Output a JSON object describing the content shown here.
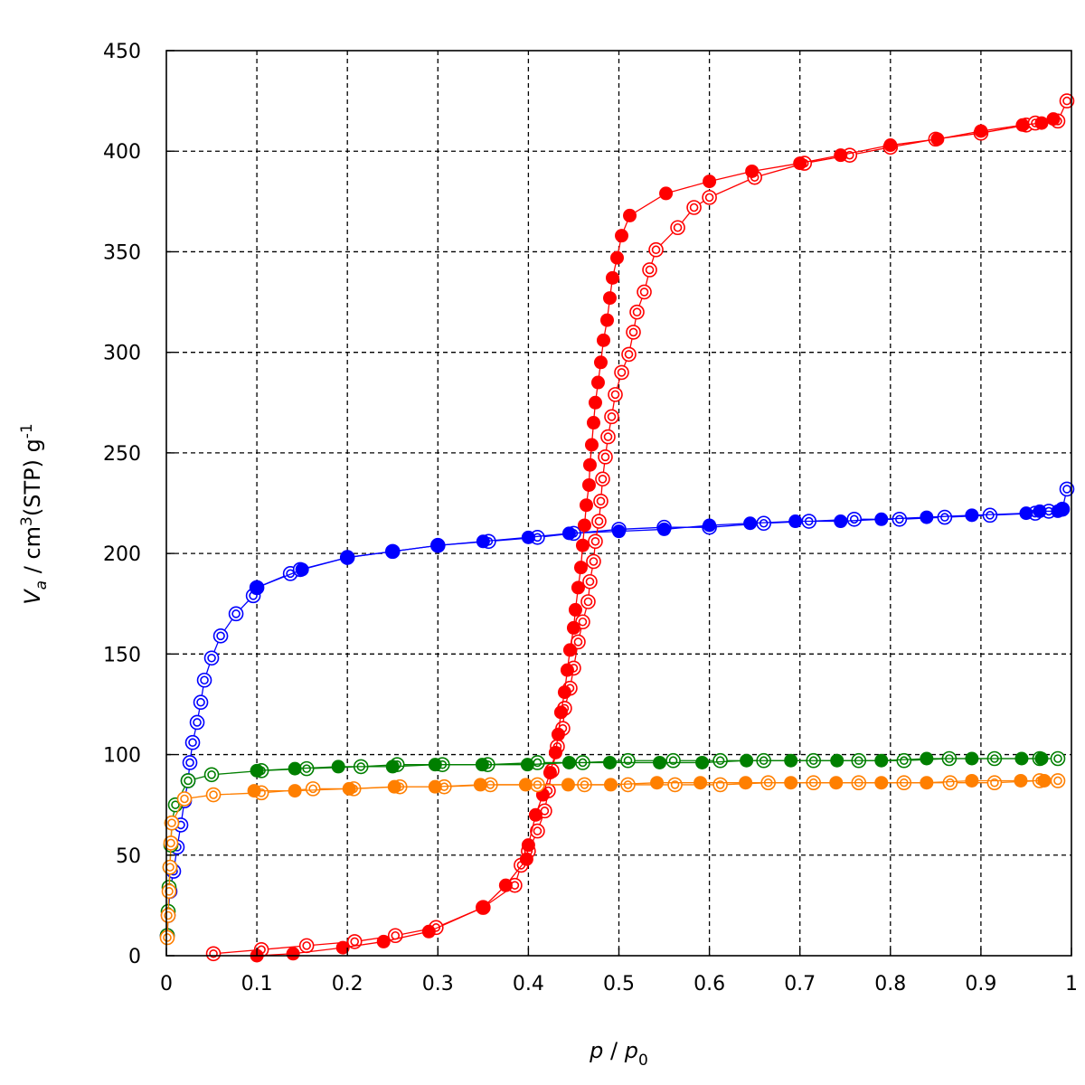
{
  "chart_data": {
    "type": "scatter",
    "title": "",
    "xlabel": {
      "main": "p",
      "sep": " / ",
      "base": "p",
      "sub": "0"
    },
    "ylabel": {
      "v": "V",
      "v_sub": "a",
      "rest": " / cm",
      "sup3": "3",
      "rest2": "(STP) g",
      "supm1": "-1"
    },
    "xlim": [
      0,
      1
    ],
    "ylim": [
      0,
      450
    ],
    "xticks": [
      0,
      0.1,
      0.2,
      0.3,
      0.4,
      0.5,
      0.6,
      0.7,
      0.8,
      0.9,
      1
    ],
    "xtick_labels": [
      "0",
      "0.1",
      "0.2",
      "0.3",
      "0.4",
      "0.5",
      "0.6",
      "0.7",
      "0.8",
      "0.9",
      "1"
    ],
    "yticks": [
      0,
      50,
      100,
      150,
      200,
      250,
      300,
      350,
      400,
      450
    ],
    "ytick_labels": [
      "0",
      "50",
      "100",
      "150",
      "200",
      "250",
      "300",
      "350",
      "400",
      "450"
    ],
    "grid": true,
    "series": [
      {
        "color": "#0000ff",
        "marker": "open",
        "points": [
          [
            0.001,
            10
          ],
          [
            0.002,
            20
          ],
          [
            0.004,
            32
          ],
          [
            0.008,
            42
          ],
          [
            0.012,
            54
          ],
          [
            0.016,
            65
          ],
          [
            0.02,
            77
          ],
          [
            0.024,
            87
          ],
          [
            0.026,
            96
          ],
          [
            0.029,
            106
          ],
          [
            0.034,
            116
          ],
          [
            0.038,
            126
          ],
          [
            0.042,
            137
          ],
          [
            0.05,
            148
          ],
          [
            0.06,
            159
          ],
          [
            0.077,
            170
          ],
          [
            0.096,
            179
          ],
          [
            0.1,
            183
          ],
          [
            0.137,
            190
          ],
          [
            0.148,
            192
          ],
          [
            0.2,
            198
          ],
          [
            0.25,
            201
          ],
          [
            0.3,
            204
          ],
          [
            0.356,
            206
          ],
          [
            0.41,
            208
          ],
          [
            0.45,
            210
          ],
          [
            0.5,
            212
          ],
          [
            0.55,
            213
          ],
          [
            0.6,
            213
          ],
          [
            0.66,
            215
          ],
          [
            0.71,
            216
          ],
          [
            0.76,
            217
          ],
          [
            0.81,
            217
          ],
          [
            0.86,
            218
          ],
          [
            0.91,
            219
          ],
          [
            0.96,
            220
          ],
          [
            0.975,
            221
          ],
          [
            0.99,
            222
          ],
          [
            0.995,
            232
          ]
        ]
      },
      {
        "color": "#0000ff",
        "marker": "filled",
        "points": [
          [
            0.1,
            183
          ],
          [
            0.15,
            192
          ],
          [
            0.2,
            198
          ],
          [
            0.25,
            201
          ],
          [
            0.3,
            204
          ],
          [
            0.35,
            206
          ],
          [
            0.4,
            208
          ],
          [
            0.445,
            210
          ],
          [
            0.5,
            211
          ],
          [
            0.55,
            212
          ],
          [
            0.6,
            214
          ],
          [
            0.645,
            215
          ],
          [
            0.695,
            216
          ],
          [
            0.745,
            216
          ],
          [
            0.79,
            217
          ],
          [
            0.84,
            218
          ],
          [
            0.89,
            219
          ],
          [
            0.95,
            220
          ],
          [
            0.965,
            221
          ],
          [
            0.985,
            221
          ],
          [
            0.99,
            222
          ]
        ]
      },
      {
        "color": "#ff0000",
        "marker": "open",
        "points": [
          [
            0.052,
            1
          ],
          [
            0.105,
            3
          ],
          [
            0.155,
            5
          ],
          [
            0.208,
            7
          ],
          [
            0.253,
            10
          ],
          [
            0.298,
            14
          ],
          [
            0.35,
            24
          ],
          [
            0.385,
            35
          ],
          [
            0.392,
            45
          ],
          [
            0.4,
            52
          ],
          [
            0.41,
            62
          ],
          [
            0.418,
            72
          ],
          [
            0.422,
            82
          ],
          [
            0.426,
            92
          ],
          [
            0.432,
            104
          ],
          [
            0.438,
            113
          ],
          [
            0.44,
            123
          ],
          [
            0.446,
            133
          ],
          [
            0.45,
            143
          ],
          [
            0.455,
            156
          ],
          [
            0.46,
            166
          ],
          [
            0.466,
            176
          ],
          [
            0.468,
            186
          ],
          [
            0.472,
            196
          ],
          [
            0.474,
            206
          ],
          [
            0.478,
            216
          ],
          [
            0.48,
            226
          ],
          [
            0.482,
            237
          ],
          [
            0.485,
            248
          ],
          [
            0.488,
            258
          ],
          [
            0.492,
            268
          ],
          [
            0.496,
            279
          ],
          [
            0.503,
            290
          ],
          [
            0.511,
            299
          ],
          [
            0.516,
            310
          ],
          [
            0.52,
            320
          ],
          [
            0.528,
            330
          ],
          [
            0.534,
            341
          ],
          [
            0.541,
            351
          ],
          [
            0.565,
            362
          ],
          [
            0.583,
            372
          ],
          [
            0.6,
            377
          ],
          [
            0.65,
            387
          ],
          [
            0.705,
            394
          ],
          [
            0.755,
            398
          ],
          [
            0.8,
            402
          ],
          [
            0.85,
            406
          ],
          [
            0.9,
            409
          ],
          [
            0.95,
            413
          ],
          [
            0.96,
            414
          ],
          [
            0.985,
            415
          ],
          [
            0.995,
            425
          ]
        ]
      },
      {
        "color": "#ff0000",
        "marker": "filled",
        "points": [
          [
            0.1,
            0
          ],
          [
            0.14,
            1
          ],
          [
            0.195,
            4
          ],
          [
            0.24,
            7
          ],
          [
            0.29,
            12
          ],
          [
            0.35,
            24
          ],
          [
            0.375,
            35
          ],
          [
            0.398,
            48
          ],
          [
            0.4,
            55
          ],
          [
            0.408,
            70
          ],
          [
            0.416,
            80
          ],
          [
            0.424,
            91
          ],
          [
            0.43,
            101
          ],
          [
            0.433,
            110
          ],
          [
            0.436,
            121
          ],
          [
            0.44,
            131
          ],
          [
            0.443,
            142
          ],
          [
            0.446,
            152
          ],
          [
            0.45,
            163
          ],
          [
            0.452,
            172
          ],
          [
            0.455,
            183
          ],
          [
            0.458,
            193
          ],
          [
            0.46,
            204
          ],
          [
            0.462,
            214
          ],
          [
            0.464,
            224
          ],
          [
            0.467,
            234
          ],
          [
            0.468,
            244
          ],
          [
            0.47,
            254
          ],
          [
            0.472,
            265
          ],
          [
            0.474,
            275
          ],
          [
            0.477,
            285
          ],
          [
            0.48,
            295
          ],
          [
            0.483,
            306
          ],
          [
            0.487,
            316
          ],
          [
            0.49,
            327
          ],
          [
            0.493,
            337
          ],
          [
            0.498,
            347
          ],
          [
            0.503,
            358
          ],
          [
            0.512,
            368
          ],
          [
            0.552,
            379
          ],
          [
            0.6,
            385
          ],
          [
            0.647,
            390
          ],
          [
            0.7,
            394
          ],
          [
            0.745,
            398
          ],
          [
            0.8,
            403
          ],
          [
            0.852,
            406
          ],
          [
            0.9,
            410
          ],
          [
            0.946,
            413
          ],
          [
            0.967,
            414
          ],
          [
            0.98,
            416
          ]
        ]
      },
      {
        "color": "#007f00",
        "marker": "open",
        "points": [
          [
            0.001,
            10
          ],
          [
            0.002,
            22
          ],
          [
            0.003,
            34
          ],
          [
            0.004,
            44
          ],
          [
            0.005,
            55
          ],
          [
            0.006,
            66
          ],
          [
            0.01,
            75
          ],
          [
            0.024,
            87
          ],
          [
            0.05,
            90
          ],
          [
            0.105,
            92
          ],
          [
            0.155,
            93
          ],
          [
            0.215,
            94
          ],
          [
            0.255,
            95
          ],
          [
            0.305,
            95
          ],
          [
            0.355,
            95
          ],
          [
            0.41,
            96
          ],
          [
            0.46,
            96
          ],
          [
            0.51,
            97
          ],
          [
            0.56,
            97
          ],
          [
            0.612,
            97
          ],
          [
            0.66,
            97
          ],
          [
            0.715,
            97
          ],
          [
            0.765,
            97
          ],
          [
            0.815,
            97
          ],
          [
            0.865,
            98
          ],
          [
            0.915,
            98
          ],
          [
            0.965,
            98
          ],
          [
            0.985,
            98
          ]
        ]
      },
      {
        "color": "#007f00",
        "marker": "filled",
        "points": [
          [
            0.1,
            92
          ],
          [
            0.142,
            93
          ],
          [
            0.19,
            94
          ],
          [
            0.25,
            94
          ],
          [
            0.297,
            95
          ],
          [
            0.349,
            95
          ],
          [
            0.399,
            95
          ],
          [
            0.445,
            96
          ],
          [
            0.49,
            96
          ],
          [
            0.545,
            96
          ],
          [
            0.592,
            96
          ],
          [
            0.641,
            97
          ],
          [
            0.69,
            97
          ],
          [
            0.741,
            97
          ],
          [
            0.79,
            97
          ],
          [
            0.84,
            98
          ],
          [
            0.89,
            98
          ],
          [
            0.945,
            98
          ],
          [
            0.967,
            98
          ]
        ]
      },
      {
        "color": "#ff7f00",
        "marker": "open",
        "points": [
          [
            0.001,
            9
          ],
          [
            0.002,
            20
          ],
          [
            0.003,
            32
          ],
          [
            0.004,
            44
          ],
          [
            0.005,
            56
          ],
          [
            0.006,
            66
          ],
          [
            0.02,
            78
          ],
          [
            0.052,
            80
          ],
          [
            0.105,
            81
          ],
          [
            0.162,
            83
          ],
          [
            0.207,
            83
          ],
          [
            0.258,
            84
          ],
          [
            0.307,
            84
          ],
          [
            0.358,
            85
          ],
          [
            0.41,
            85
          ],
          [
            0.462,
            85
          ],
          [
            0.51,
            85
          ],
          [
            0.562,
            85
          ],
          [
            0.612,
            85
          ],
          [
            0.665,
            86
          ],
          [
            0.715,
            86
          ],
          [
            0.765,
            86
          ],
          [
            0.815,
            86
          ],
          [
            0.866,
            86
          ],
          [
            0.915,
            86
          ],
          [
            0.965,
            87
          ],
          [
            0.985,
            87
          ]
        ]
      },
      {
        "color": "#ff7f00",
        "marker": "filled",
        "points": [
          [
            0.097,
            82
          ],
          [
            0.142,
            82
          ],
          [
            0.202,
            83
          ],
          [
            0.252,
            84
          ],
          [
            0.297,
            84
          ],
          [
            0.347,
            85
          ],
          [
            0.397,
            85
          ],
          [
            0.444,
            85
          ],
          [
            0.491,
            85
          ],
          [
            0.542,
            86
          ],
          [
            0.59,
            86
          ],
          [
            0.64,
            86
          ],
          [
            0.69,
            86
          ],
          [
            0.74,
            86
          ],
          [
            0.79,
            86
          ],
          [
            0.84,
            86
          ],
          [
            0.89,
            87
          ],
          [
            0.944,
            87
          ],
          [
            0.97,
            87
          ]
        ]
      }
    ]
  }
}
